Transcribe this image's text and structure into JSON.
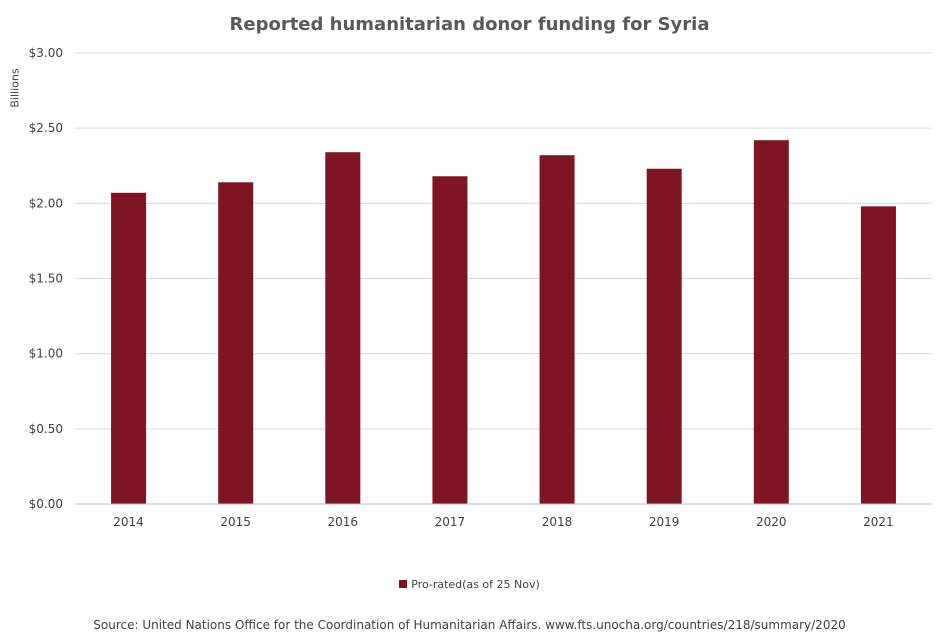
{
  "chart_data": {
    "type": "bar",
    "title": "Reported humanitarian donor funding for Syria",
    "ylabel": "Billions",
    "xlabel": "",
    "categories": [
      "2014",
      "2015",
      "2016",
      "2017",
      "2018",
      "2019",
      "2020",
      "2021"
    ],
    "series": [
      {
        "name": "Pro-rated(as of 25 Nov)",
        "values": [
          2.07,
          2.14,
          2.34,
          2.18,
          2.32,
          2.23,
          2.42,
          1.98
        ],
        "color": "#7f1423"
      }
    ],
    "ylim": [
      0,
      3
    ],
    "yticks": [
      0,
      0.5,
      1,
      1.5,
      2,
      2.5,
      3
    ],
    "ytick_labels": [
      "$0.00",
      "$0.50",
      "$1.00",
      "$1.50",
      "$2.00",
      "$2.50",
      "$3.00"
    ],
    "grid": true,
    "legend_position": "bottom"
  },
  "source": "Source: United Nations Office for the Coordination of Humanitarian Affairs. www.fts.unocha.org/countries/218/summary/2020"
}
